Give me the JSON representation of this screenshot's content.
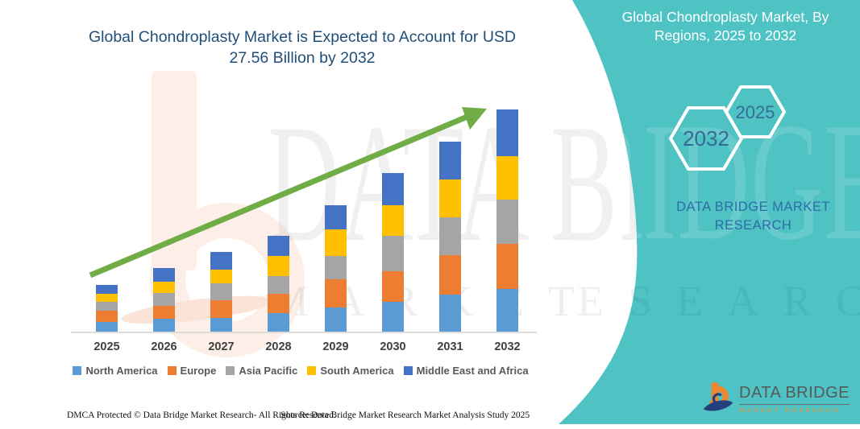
{
  "page": {
    "background": "#ffffff",
    "accent_teal": "#4fc2c4"
  },
  "header": {
    "title": "Global Chondroplasty Market is Expected to Account for USD 27.56 Billion by 2032",
    "title_color": "#1f4e79"
  },
  "side_panel": {
    "background": "#4fc2c4",
    "title": "Global Chondroplasty Market, By Regions, 2025 to 2032",
    "hexagon_badges": [
      {
        "label": "2032"
      },
      {
        "label": "2025"
      }
    ],
    "brand": "DATA BRIDGE MARKET RESEARCH",
    "brand_color": "#2d6da8"
  },
  "watermark": {
    "row1": "DATA BRIDGE",
    "row2": "MARKET RESEARCH",
    "row1_right": "RIDGE",
    "row2_right": "ESEARCH"
  },
  "logo": {
    "name": "DATA BRIDGE",
    "tagline": "MARKET RESEARCH",
    "orange": "#f0862b",
    "navy": "#24407c"
  },
  "footer": {
    "dmca": "DMCA Protected © Data Bridge Market Research- All Rights Reserved.",
    "source": "Source: Data Bridge Market Research Market Analysis Study 2025"
  },
  "chart_data": {
    "type": "bar",
    "stacked": true,
    "unit": "USD Billion",
    "title": "Global Chondroplasty Market, By Regions, 2025 to 2032",
    "categories": [
      "2025",
      "2026",
      "2027",
      "2028",
      "2029",
      "2030",
      "2031",
      "2032"
    ],
    "series": [
      {
        "name": "North America",
        "color": "#5b9bd5",
        "values": [
          1.2,
          1.6,
          1.7,
          2.3,
          3.0,
          3.7,
          4.6,
          5.3
        ]
      },
      {
        "name": "Europe",
        "color": "#ed7d31",
        "values": [
          1.4,
          1.6,
          2.2,
          2.4,
          3.5,
          3.8,
          4.9,
          5.6
        ]
      },
      {
        "name": "Asia Pacific",
        "color": "#a5a5a5",
        "values": [
          1.1,
          1.6,
          2.1,
          2.2,
          2.9,
          4.4,
          4.7,
          5.5
        ]
      },
      {
        "name": "South America",
        "color": "#ffc000",
        "values": [
          1.0,
          1.4,
          1.7,
          2.5,
          3.3,
          3.8,
          4.7,
          5.4
        ]
      },
      {
        "name": "Middle East and Africa",
        "color": "#4472c4",
        "values": [
          1.1,
          1.7,
          2.2,
          2.5,
          3.0,
          4.0,
          4.7,
          5.8
        ]
      }
    ],
    "totals": [
      5.8,
      7.9,
      9.9,
      11.9,
      15.7,
      19.7,
      23.6,
      27.56
    ],
    "highlight_total_2032": "27.56",
    "trend_arrow": {
      "color": "#70ad47",
      "direction": "up-right"
    },
    "legend_position": "bottom",
    "gridlines": false,
    "y_axis_labels_shown": false
  }
}
